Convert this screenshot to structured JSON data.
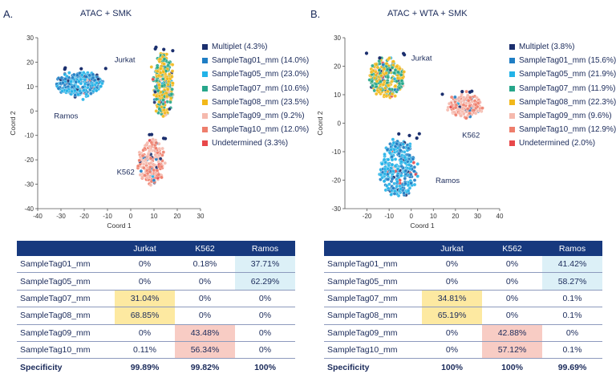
{
  "panels": [
    {
      "label": "A.",
      "title": "ATAC + SMK",
      "chart_data": {
        "type": "scatter",
        "xlabel": "Coord 1",
        "ylabel": "Coord 2",
        "xlim": [
          -40,
          30
        ],
        "ylim": [
          -40,
          30
        ],
        "xticks": [
          -40,
          -30,
          -20,
          -10,
          0,
          10,
          20,
          30
        ],
        "yticks": [
          -40,
          -30,
          -20,
          -10,
          0,
          10,
          20,
          30
        ],
        "clusters": [
          {
            "name": "Jurkat",
            "label_at": [
              -7,
              20
            ],
            "cx": 14,
            "cy": 11,
            "rx": 4,
            "ry": 13,
            "n": 320,
            "tags": [
              "SampleTag07_mm",
              "SampleTag08_mm"
            ]
          },
          {
            "name": "Ramos",
            "label_at": [
              -33,
              -3
            ],
            "cx": -22,
            "cy": 11,
            "rx": 10,
            "ry": 5,
            "n": 300,
            "tags": [
              "SampleTag01_mm",
              "SampleTag05_mm"
            ]
          },
          {
            "name": "K562",
            "label_at": [
              -6,
              -26
            ],
            "cx": 9,
            "cy": -21,
            "rx": 5,
            "ry": 9,
            "n": 210,
            "tags": [
              "SampleTag09_mm",
              "SampleTag10_mm"
            ]
          }
        ],
        "series": [
          {
            "name": "Multiplet",
            "percent": 4.3,
            "color": "#1b2f6e"
          },
          {
            "name": "SampleTag01_mm",
            "percent": 14.0,
            "color": "#1f7ec4"
          },
          {
            "name": "SampleTag05_mm",
            "percent": 23.0,
            "color": "#22b3e8"
          },
          {
            "name": "SampleTag07_mm",
            "percent": 10.6,
            "color": "#26a68a"
          },
          {
            "name": "SampleTag08_mm",
            "percent": 23.5,
            "color": "#f2b81a"
          },
          {
            "name": "SampleTag09_mm",
            "percent": 9.2,
            "color": "#f5b9ad"
          },
          {
            "name": "SampleTag10_mm",
            "percent": 12.0,
            "color": "#ee7e6c"
          },
          {
            "name": "Undetermined",
            "percent": 3.3,
            "color": "#e8484a"
          }
        ]
      },
      "legend": [
        {
          "label": "Multiplet (4.3%)",
          "color": "#1b2f6e"
        },
        {
          "label": "SampleTag01_mm (14.0%)",
          "color": "#1f7ec4"
        },
        {
          "label": "SampleTag05_mm (23.0%)",
          "color": "#22b3e8"
        },
        {
          "label": "SampleTag07_mm (10.6%)",
          "color": "#26a68a"
        },
        {
          "label": "SampleTag08_mm (23.5%)",
          "color": "#f2b81a"
        },
        {
          "label": "SampleTag09_mm (9.2%)",
          "color": "#f5b9ad"
        },
        {
          "label": "SampleTag10_mm (12.0%)",
          "color": "#ee7e6c"
        },
        {
          "label": "Undetermined (3.3%)",
          "color": "#e8484a"
        }
      ],
      "table": {
        "headers": [
          "",
          "Jurkat",
          "K562",
          "Ramos"
        ],
        "rows": [
          {
            "tag": "SampleTag01_mm",
            "values": [
              "0%",
              "0.18%",
              "37.71%"
            ],
            "highlight": [
              "",
              "",
              "blue"
            ]
          },
          {
            "tag": "SampleTag05_mm",
            "values": [
              "0%",
              "0%",
              "62.29%"
            ],
            "highlight": [
              "",
              "",
              "blue"
            ]
          },
          {
            "tag": "SampleTag07_mm",
            "values": [
              "31.04%",
              "0%",
              "0%"
            ],
            "highlight": [
              "yellow",
              "",
              ""
            ]
          },
          {
            "tag": "SampleTag08_mm",
            "values": [
              "68.85%",
              "0%",
              "0%"
            ],
            "highlight": [
              "yellow",
              "",
              ""
            ]
          },
          {
            "tag": "SampleTag09_mm",
            "values": [
              "0%",
              "43.48%",
              "0%"
            ],
            "highlight": [
              "",
              "red",
              ""
            ]
          },
          {
            "tag": "SampleTag10_mm",
            "values": [
              "0.11%",
              "56.34%",
              "0%"
            ],
            "highlight": [
              "",
              "red",
              ""
            ]
          }
        ],
        "specificity": {
          "label": "Specificity",
          "values": [
            "99.89%",
            "99.82%",
            "100%"
          ]
        }
      }
    },
    {
      "label": "B.",
      "title": "ATAC + WTA + SMK",
      "chart_data": {
        "type": "scatter",
        "xlabel": "Coord 1",
        "ylabel": "Coord 2",
        "xlim": [
          -30,
          40
        ],
        "ylim": [
          -30,
          30
        ],
        "xticks": [
          -20,
          -10,
          0,
          10,
          20,
          30,
          40
        ],
        "yticks": [
          -30,
          -20,
          -10,
          0,
          10,
          20,
          30
        ],
        "clusters": [
          {
            "name": "Jurkat",
            "label_at": [
              0,
              22
            ],
            "cx": -11,
            "cy": 16,
            "rx": 8,
            "ry": 6.5,
            "n": 300,
            "tags": [
              "SampleTag07_mm",
              "SampleTag08_mm"
            ]
          },
          {
            "name": "K562",
            "label_at": [
              23,
              -5
            ],
            "cx": 24,
            "cy": 6,
            "rx": 8,
            "ry": 3.5,
            "n": 170,
            "tags": [
              "SampleTag09_mm",
              "SampleTag10_mm"
            ]
          },
          {
            "name": "Ramos",
            "label_at": [
              11,
              -21
            ],
            "cx": -6,
            "cy": -16,
            "rx": 8,
            "ry": 10,
            "n": 330,
            "tags": [
              "SampleTag01_mm",
              "SampleTag05_mm"
            ]
          }
        ],
        "series": [
          {
            "name": "Multiplet",
            "percent": 3.8,
            "color": "#1b2f6e"
          },
          {
            "name": "SampleTag01_mm",
            "percent": 15.6,
            "color": "#1f7ec4"
          },
          {
            "name": "SampleTag05_mm",
            "percent": 21.9,
            "color": "#22b3e8"
          },
          {
            "name": "SampleTag07_mm",
            "percent": 11.9,
            "color": "#26a68a"
          },
          {
            "name": "SampleTag08_mm",
            "percent": 22.3,
            "color": "#f2b81a"
          },
          {
            "name": "SampleTag09_mm",
            "percent": 9.6,
            "color": "#f5b9ad"
          },
          {
            "name": "SampleTag10_mm",
            "percent": 12.9,
            "color": "#ee7e6c"
          },
          {
            "name": "Undetermined",
            "percent": 2.0,
            "color": "#e8484a"
          }
        ]
      },
      "legend": [
        {
          "label": "Multiplet (3.8%)",
          "color": "#1b2f6e"
        },
        {
          "label": "SampleTag01_mm (15.6%)",
          "color": "#1f7ec4"
        },
        {
          "label": "SampleTag05_mm (21.9%)",
          "color": "#22b3e8"
        },
        {
          "label": "SampleTag07_mm (11.9%)",
          "color": "#26a68a"
        },
        {
          "label": "SampleTag08_mm (22.3%)",
          "color": "#f2b81a"
        },
        {
          "label": "SampleTag09_mm (9.6%)",
          "color": "#f5b9ad"
        },
        {
          "label": "SampleTag10_mm (12.9%)",
          "color": "#ee7e6c"
        },
        {
          "label": "Undetermined (2.0%)",
          "color": "#e8484a"
        }
      ],
      "table": {
        "headers": [
          "",
          "Jurkat",
          "K562",
          "Ramos"
        ],
        "rows": [
          {
            "tag": "SampleTag01_mm",
            "values": [
              "0%",
              "0%",
              "41.42%"
            ],
            "highlight": [
              "",
              "",
              "blue"
            ]
          },
          {
            "tag": "SampleTag05_mm",
            "values": [
              "0%",
              "0%",
              "58.27%"
            ],
            "highlight": [
              "",
              "",
              "blue"
            ]
          },
          {
            "tag": "SampleTag07_mm",
            "values": [
              "34.81%",
              "0%",
              "0.1%"
            ],
            "highlight": [
              "yellow",
              "",
              ""
            ]
          },
          {
            "tag": "SampleTag08_mm",
            "values": [
              "65.19%",
              "0%",
              "0.1%"
            ],
            "highlight": [
              "yellow",
              "",
              ""
            ]
          },
          {
            "tag": "SampleTag09_mm",
            "values": [
              "0%",
              "42.88%",
              "0%"
            ],
            "highlight": [
              "",
              "red",
              ""
            ]
          },
          {
            "tag": "SampleTag10_mm",
            "values": [
              "0%",
              "57.12%",
              "0.1%"
            ],
            "highlight": [
              "",
              "red",
              ""
            ]
          }
        ],
        "specificity": {
          "label": "Specificity",
          "values": [
            "100%",
            "100%",
            "99.69%"
          ]
        }
      }
    }
  ]
}
